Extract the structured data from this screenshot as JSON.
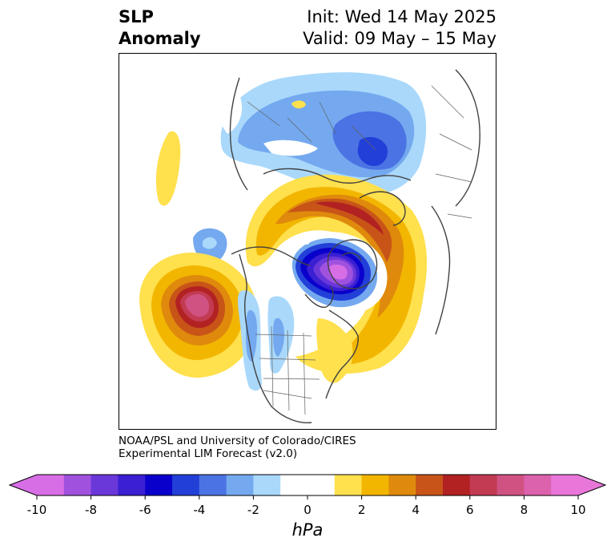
{
  "title": {
    "variable_line1": "SLP",
    "variable_line2": "Anomaly",
    "init": "Init: Wed 14 May 2025",
    "valid": "Valid: 09 May – 15 May"
  },
  "credit": {
    "line1": "NOAA/PSL and University of Colorado/CIRES",
    "line2": "Experimental LIM Forecast (v2.0)"
  },
  "colorbar": {
    "label": "hPa",
    "ticks": [
      "-10",
      "-8",
      "-6",
      "-4",
      "-2",
      "0",
      "2",
      "4",
      "6",
      "8",
      "10"
    ],
    "tick_values": [
      -10,
      -8,
      -6,
      -4,
      -2,
      0,
      2,
      4,
      6,
      8,
      10
    ],
    "min": -10,
    "max": 10,
    "extend": "both",
    "colors": [
      "#d76ee6",
      "#a052df",
      "#6a37d9",
      "#3a1fd3",
      "#0a00cc",
      "#2240d8",
      "#4b73e3",
      "#74a9ef",
      "#a9d8fb",
      "#ffffff",
      "#ffffff",
      "#ffe04d",
      "#f2b600",
      "#df8a0c",
      "#c85418",
      "#b22222",
      "#c33b53",
      "#d05282",
      "#dd62ad",
      "#e877d9"
    ],
    "under_color": "#d76ee6",
    "over_color": "#e877d9"
  },
  "map": {
    "projection": "north polar stereographic",
    "features": [
      {
        "name": "northeast-pacific-high",
        "anomaly_hpa": 8
      },
      {
        "name": "arctic-canada-low",
        "anomaly_hpa": -10
      },
      {
        "name": "northern-eurasia-low",
        "anomaly_hpa": -6
      },
      {
        "name": "north-atlantic-positive-arc",
        "anomaly_hpa": 6
      }
    ]
  }
}
